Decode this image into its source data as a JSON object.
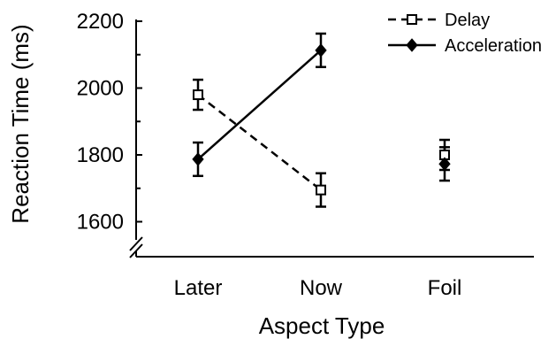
{
  "chart_data": {
    "type": "line",
    "title": "",
    "xlabel": "Aspect Type",
    "ylabel": "Reaction Time (ms)",
    "categories": [
      "Later",
      "Now",
      "Foil"
    ],
    "ylim": [
      1500,
      2200
    ],
    "yticks": [
      "1600",
      "1800",
      "2000",
      "2200"
    ],
    "axis_break": true,
    "grid": false,
    "legend_position": "top-right",
    "series": [
      {
        "name": "Delay",
        "marker": "open-square",
        "line_style": "dashed",
        "color": "#000000",
        "values": [
          1980,
          1695,
          1800
        ],
        "error": [
          45,
          50,
          45
        ],
        "connected_categories": [
          "Later",
          "Now"
        ]
      },
      {
        "name": "Acceleration",
        "marker": "filled-diamond",
        "line_style": "solid",
        "color": "#000000",
        "values": [
          1787,
          2113,
          1773
        ],
        "error": [
          50,
          50,
          50
        ],
        "connected_categories": [
          "Later",
          "Now"
        ]
      }
    ]
  }
}
